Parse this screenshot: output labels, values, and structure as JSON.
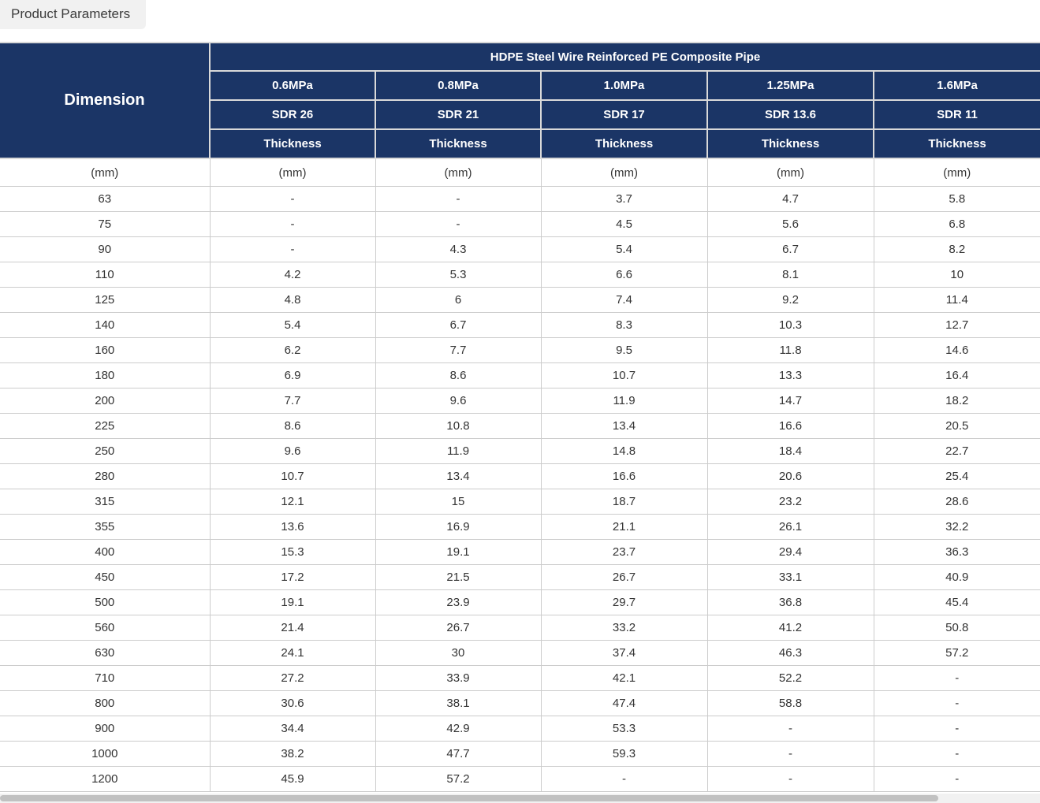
{
  "tab": {
    "label": "Product Parameters"
  },
  "table": {
    "dimension_header": "Dimension",
    "group_header": "HDPE Steel Wire Reinforced PE Composite Pipe",
    "columns": [
      {
        "pressure": "0.6MPa",
        "sdr": "SDR 26",
        "metric": "Thickness"
      },
      {
        "pressure": "0.8MPa",
        "sdr": "SDR 21",
        "metric": "Thickness"
      },
      {
        "pressure": "1.0MPa",
        "sdr": "SDR 17",
        "metric": "Thickness"
      },
      {
        "pressure": "1.25MPa",
        "sdr": "SDR 13.6",
        "metric": "Thickness"
      },
      {
        "pressure": "1.6MPa",
        "sdr": "SDR 11",
        "metric": "Thickness"
      }
    ],
    "units": [
      "(mm)",
      "(mm)",
      "(mm)",
      "(mm)",
      "(mm)",
      "(mm)"
    ],
    "rows": [
      {
        "dimension": "63",
        "values": [
          "-",
          "-",
          "3.7",
          "4.7",
          "5.8"
        ]
      },
      {
        "dimension": "75",
        "values": [
          "-",
          "-",
          "4.5",
          "5.6",
          "6.8"
        ]
      },
      {
        "dimension": "90",
        "values": [
          "-",
          "4.3",
          "5.4",
          "6.7",
          "8.2"
        ]
      },
      {
        "dimension": "110",
        "values": [
          "4.2",
          "5.3",
          "6.6",
          "8.1",
          "10"
        ]
      },
      {
        "dimension": "125",
        "values": [
          "4.8",
          "6",
          "7.4",
          "9.2",
          "11.4"
        ]
      },
      {
        "dimension": "140",
        "values": [
          "5.4",
          "6.7",
          "8.3",
          "10.3",
          "12.7"
        ]
      },
      {
        "dimension": "160",
        "values": [
          "6.2",
          "7.7",
          "9.5",
          "11.8",
          "14.6"
        ]
      },
      {
        "dimension": "180",
        "values": [
          "6.9",
          "8.6",
          "10.7",
          "13.3",
          "16.4"
        ]
      },
      {
        "dimension": "200",
        "values": [
          "7.7",
          "9.6",
          "11.9",
          "14.7",
          "18.2"
        ]
      },
      {
        "dimension": "225",
        "values": [
          "8.6",
          "10.8",
          "13.4",
          "16.6",
          "20.5"
        ]
      },
      {
        "dimension": "250",
        "values": [
          "9.6",
          "11.9",
          "14.8",
          "18.4",
          "22.7"
        ]
      },
      {
        "dimension": "280",
        "values": [
          "10.7",
          "13.4",
          "16.6",
          "20.6",
          "25.4"
        ]
      },
      {
        "dimension": "315",
        "values": [
          "12.1",
          "15",
          "18.7",
          "23.2",
          "28.6"
        ]
      },
      {
        "dimension": "355",
        "values": [
          "13.6",
          "16.9",
          "21.1",
          "26.1",
          "32.2"
        ]
      },
      {
        "dimension": "400",
        "values": [
          "15.3",
          "19.1",
          "23.7",
          "29.4",
          "36.3"
        ]
      },
      {
        "dimension": "450",
        "values": [
          "17.2",
          "21.5",
          "26.7",
          "33.1",
          "40.9"
        ]
      },
      {
        "dimension": "500",
        "values": [
          "19.1",
          "23.9",
          "29.7",
          "36.8",
          "45.4"
        ]
      },
      {
        "dimension": "560",
        "values": [
          "21.4",
          "26.7",
          "33.2",
          "41.2",
          "50.8"
        ]
      },
      {
        "dimension": "630",
        "values": [
          "24.1",
          "30",
          "37.4",
          "46.3",
          "57.2"
        ]
      },
      {
        "dimension": "710",
        "values": [
          "27.2",
          "33.9",
          "42.1",
          "52.2",
          "-"
        ]
      },
      {
        "dimension": "800",
        "values": [
          "30.6",
          "38.1",
          "47.4",
          "58.8",
          "-"
        ]
      },
      {
        "dimension": "900",
        "values": [
          "34.4",
          "42.9",
          "53.3",
          "-",
          "-"
        ]
      },
      {
        "dimension": "1000",
        "values": [
          "38.2",
          "47.7",
          "59.3",
          "-",
          "-"
        ]
      },
      {
        "dimension": "1200",
        "values": [
          "45.9",
          "57.2",
          "-",
          "-",
          "-"
        ]
      }
    ]
  },
  "colors": {
    "header_bg": "#1b3566",
    "header_text": "#ffffff",
    "header_border": "#d9d9d9",
    "body_border": "#cccccc",
    "body_text": "#333333",
    "tab_bg": "#f1f1f1",
    "scrollbar_track": "#f1f1f1",
    "scrollbar_thumb": "#c1c1c1"
  }
}
